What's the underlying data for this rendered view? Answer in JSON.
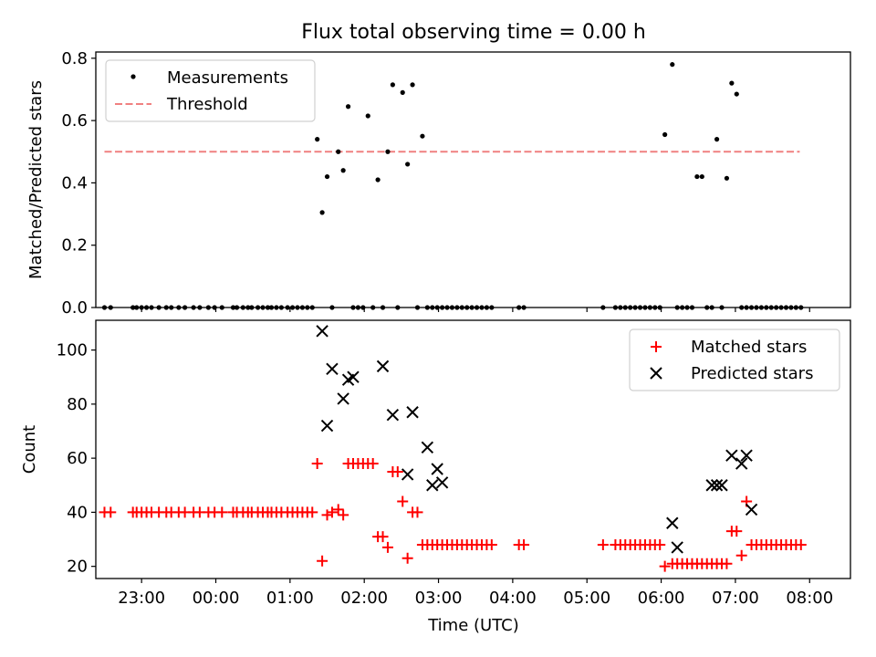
{
  "figure_title": "Flux total observing time = 0.00 h",
  "xlabel": "Time (UTC)",
  "chart_data": [
    {
      "type": "scatter",
      "ylabel": "Matched/Predicted stars",
      "ylim": [
        0,
        0.82
      ],
      "yticks": [
        "0.0",
        "0.2",
        "0.4",
        "0.6",
        "0.8"
      ],
      "ytick_values": [
        0,
        0.2,
        0.4,
        0.6,
        0.8
      ],
      "legend_position": "top-left",
      "threshold": {
        "name": "Threshold",
        "value": 0.5,
        "x_start": "22:30",
        "x_end": "07:52",
        "color": "#f08080",
        "style": "dashed"
      },
      "series": [
        {
          "name": "Measurements",
          "marker": "dot",
          "color": "#000000",
          "x": [
            "22:30",
            "22:35",
            "22:53",
            "22:56",
            "23:00",
            "23:04",
            "23:08",
            "23:14",
            "23:20",
            "23:24",
            "23:30",
            "23:35",
            "23:42",
            "23:47",
            "23:54",
            "23:59",
            "00:05",
            "00:14",
            "00:17",
            "00:22",
            "00:26",
            "00:29",
            "00:34",
            "00:38",
            "00:42",
            "00:45",
            "00:49",
            "00:53",
            "00:58",
            "01:02",
            "01:06",
            "01:10",
            "01:14",
            "01:18",
            "01:22",
            "01:26",
            "01:30",
            "01:34",
            "01:39",
            "01:43",
            "01:47",
            "01:51",
            "01:55",
            "01:59",
            "02:03",
            "02:07",
            "02:11",
            "02:15",
            "02:19",
            "02:23",
            "02:27",
            "02:31",
            "02:35",
            "02:39",
            "02:43",
            "02:47",
            "02:51",
            "02:55",
            "02:59",
            "03:03",
            "03:07",
            "03:11",
            "03:15",
            "03:19",
            "03:23",
            "03:27",
            "03:31",
            "03:35",
            "03:39",
            "03:43",
            "04:05",
            "04:09",
            "05:13",
            "05:23",
            "05:27",
            "05:31",
            "05:35",
            "05:39",
            "05:43",
            "05:47",
            "05:51",
            "05:55",
            "05:59",
            "06:03",
            "06:09",
            "06:13",
            "06:17",
            "06:21",
            "06:25",
            "06:29",
            "06:33",
            "06:37",
            "06:41",
            "06:45",
            "06:49",
            "06:53",
            "06:57",
            "07:01",
            "07:05",
            "07:09",
            "07:13",
            "07:17",
            "07:21",
            "07:25",
            "07:29",
            "07:33",
            "07:37",
            "07:41",
            "07:45",
            "07:49",
            "07:53"
          ],
          "y": [
            0,
            0,
            0,
            0,
            0,
            0,
            0,
            0,
            0,
            0,
            0,
            0,
            0,
            0,
            0,
            0,
            0,
            0,
            0,
            0,
            0,
            0,
            0,
            0,
            0,
            0,
            0,
            0,
            0,
            0,
            0,
            0,
            0,
            0,
            0.54,
            0.305,
            0.42,
            0,
            0.5,
            0.44,
            0.645,
            0,
            0,
            0,
            0.615,
            0,
            0.41,
            0,
            0.5,
            0.715,
            0,
            0.69,
            0.46,
            0.715,
            0,
            0.55,
            0,
            0,
            0,
            0,
            0,
            0,
            0,
            0,
            0,
            0,
            0,
            0,
            0,
            0,
            0,
            0,
            0,
            0,
            0,
            0,
            0,
            0,
            0,
            0,
            0,
            0,
            0,
            0.555,
            0.78,
            0,
            0,
            0,
            0,
            0.42,
            0.42,
            0,
            0,
            0.54,
            0,
            0.415,
            0.72,
            0.685,
            0,
            0,
            0,
            0,
            0,
            0,
            0,
            0,
            0,
            0,
            0,
            0,
            0
          ]
        }
      ]
    },
    {
      "type": "scatter",
      "ylabel": "Count",
      "ylim": [
        15.5,
        111
      ],
      "yticks": [
        "20",
        "40",
        "60",
        "80",
        "100"
      ],
      "ytick_values": [
        20,
        40,
        60,
        80,
        100
      ],
      "xticks": [
        "23:00",
        "00:00",
        "01:00",
        "02:00",
        "03:00",
        "04:00",
        "05:00",
        "06:00",
        "07:00",
        "08:00"
      ],
      "legend_position": "top-right",
      "series": [
        {
          "name": "Matched stars",
          "marker": "plus",
          "color": "#ff0000",
          "x": [
            "22:30",
            "22:35",
            "22:53",
            "22:56",
            "23:00",
            "23:04",
            "23:08",
            "23:14",
            "23:20",
            "23:24",
            "23:30",
            "23:35",
            "23:42",
            "23:47",
            "23:54",
            "23:59",
            "00:05",
            "00:14",
            "00:17",
            "00:22",
            "00:26",
            "00:29",
            "00:34",
            "00:38",
            "00:42",
            "00:45",
            "00:49",
            "00:53",
            "00:58",
            "01:02",
            "01:06",
            "01:10",
            "01:14",
            "01:18",
            "01:22",
            "01:26",
            "01:30",
            "01:34",
            "01:39",
            "01:43",
            "01:47",
            "01:51",
            "01:55",
            "01:59",
            "02:03",
            "02:07",
            "02:11",
            "02:15",
            "02:19",
            "02:23",
            "02:27",
            "02:31",
            "02:35",
            "02:39",
            "02:43",
            "02:47",
            "02:51",
            "02:55",
            "02:59",
            "03:03",
            "03:07",
            "03:11",
            "03:15",
            "03:19",
            "03:23",
            "03:27",
            "03:31",
            "03:35",
            "03:39",
            "03:43",
            "04:05",
            "04:09",
            "05:13",
            "05:23",
            "05:27",
            "05:31",
            "05:35",
            "05:39",
            "05:43",
            "05:47",
            "05:51",
            "05:55",
            "05:59",
            "06:03",
            "06:09",
            "06:13",
            "06:17",
            "06:21",
            "06:25",
            "06:29",
            "06:33",
            "06:37",
            "06:41",
            "06:45",
            "06:49",
            "06:53",
            "06:57",
            "07:01",
            "07:05",
            "07:09",
            "07:13",
            "07:17",
            "07:21",
            "07:25",
            "07:29",
            "07:33",
            "07:37",
            "07:41",
            "07:45",
            "07:49",
            "07:53"
          ],
          "y": [
            40,
            40,
            40,
            40,
            40,
            40,
            40,
            40,
            40,
            40,
            40,
            40,
            40,
            40,
            40,
            40,
            40,
            40,
            40,
            40,
            40,
            40,
            40,
            40,
            40,
            40,
            40,
            40,
            40,
            40,
            40,
            40,
            40,
            40,
            58,
            22,
            39,
            40,
            41,
            39,
            58,
            58,
            58,
            58,
            58,
            58,
            31,
            31,
            27,
            55,
            55,
            44,
            23,
            40,
            40,
            28,
            28,
            28,
            28,
            28,
            28,
            28,
            28,
            28,
            28,
            28,
            28,
            28,
            28,
            28,
            28,
            28,
            28,
            28,
            28,
            28,
            28,
            28,
            28,
            28,
            28,
            28,
            28,
            20,
            21,
            21,
            21,
            21,
            21,
            21,
            21,
            21,
            21,
            21,
            21,
            21,
            33,
            33,
            24,
            44,
            28,
            28,
            28,
            28,
            28,
            28,
            28,
            28,
            28,
            28,
            28
          ]
        },
        {
          "name": "Predicted stars",
          "marker": "x",
          "color": "#000000",
          "x": [
            "01:26",
            "01:30",
            "01:34",
            "01:43",
            "01:47",
            "01:51",
            "02:15",
            "02:23",
            "02:35",
            "02:39",
            "02:51",
            "02:55",
            "02:59",
            "03:03",
            "06:09",
            "06:13",
            "06:41",
            "06:45",
            "06:49",
            "06:57",
            "07:05",
            "07:09",
            "07:13"
          ],
          "y": [
            107,
            72,
            93,
            82,
            89,
            90,
            94,
            76,
            54,
            77,
            64,
            50,
            56,
            51,
            36,
            27,
            50,
            50,
            50,
            61,
            58,
            61,
            41
          ]
        }
      ]
    }
  ]
}
